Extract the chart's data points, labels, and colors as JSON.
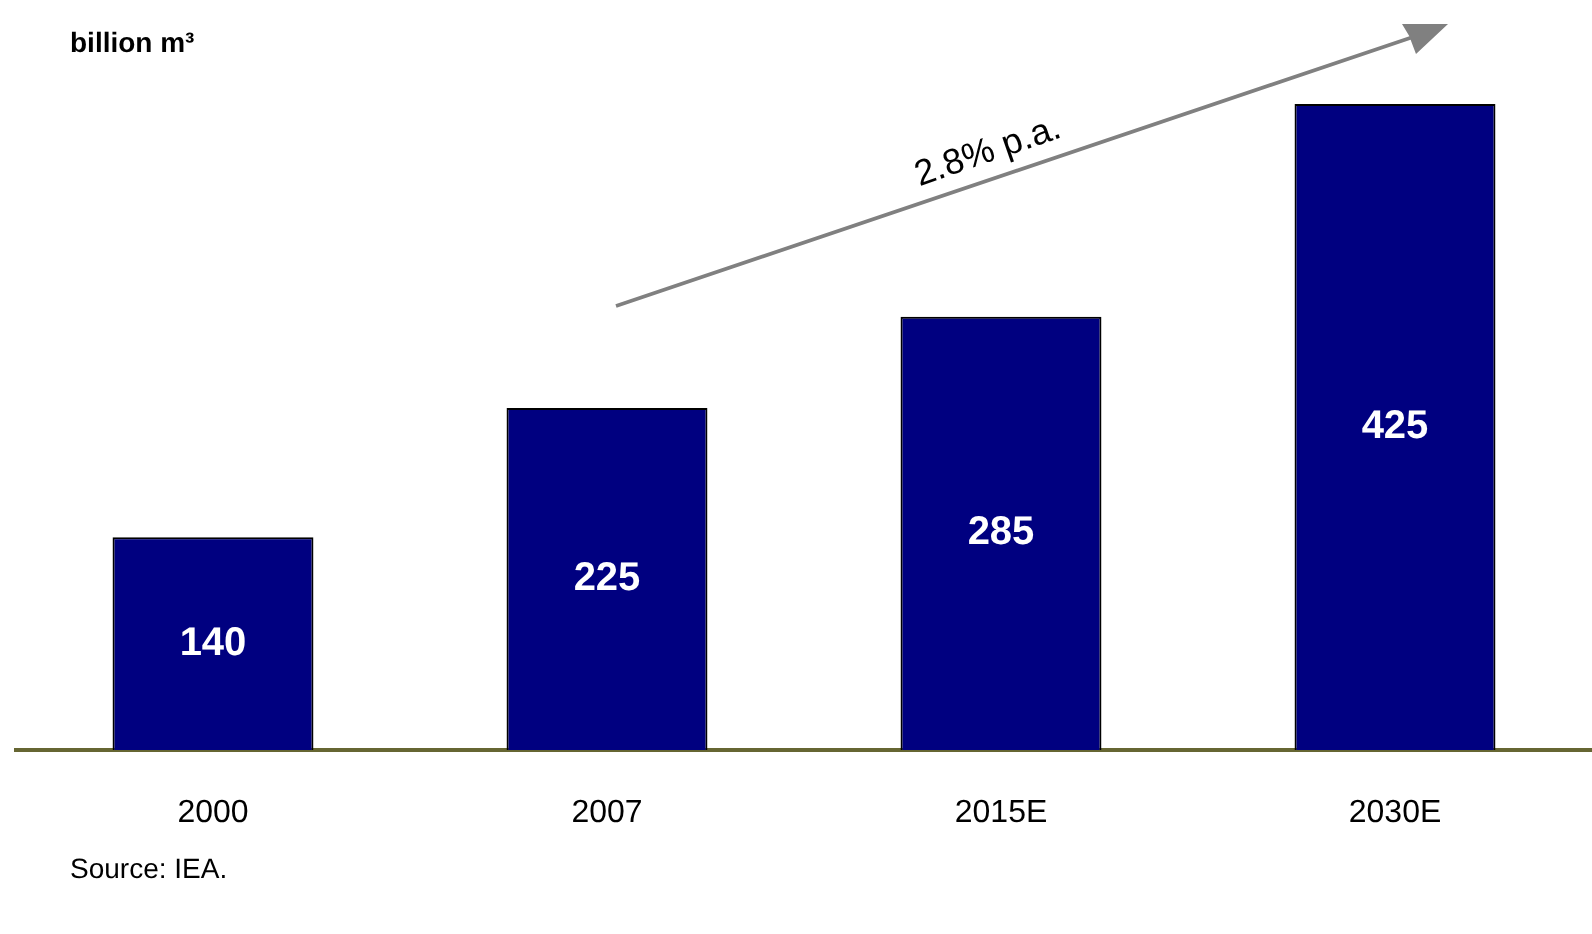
{
  "chart_data": {
    "type": "bar",
    "ylabel": "billion m³",
    "categories": [
      "2000",
      "2007",
      "2015E",
      "2030E"
    ],
    "values": [
      140,
      225,
      285,
      425
    ],
    "color": "#000080",
    "data_labels": true,
    "grid": false,
    "legend": false,
    "annotations": [
      "2.8% p.a.",
      "Source: IEA."
    ]
  }
}
